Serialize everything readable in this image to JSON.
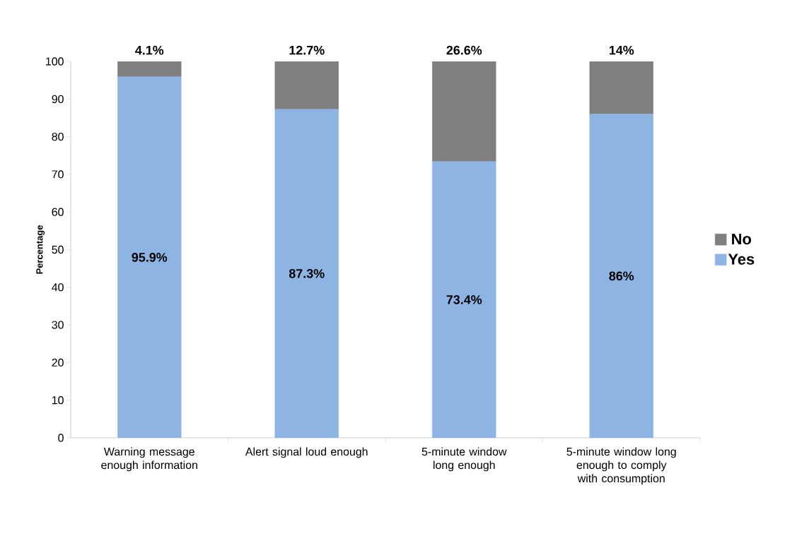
{
  "chart_data": {
    "type": "bar",
    "stacked": true,
    "ylabel": "Percentage",
    "categories": [
      "Warning message enough information",
      "Alert signal loud enough",
      "5-minute window long enough",
      "5-minute window long enough to comply with consumption"
    ],
    "series": [
      {
        "name": "Yes",
        "color": "#8eb4e3",
        "values": [
          95.9,
          87.3,
          73.4,
          86
        ],
        "value_labels": [
          "95.9%",
          "87.3%",
          "73.4%",
          "86%"
        ]
      },
      {
        "name": "No",
        "color": "#7f7f7f",
        "values": [
          4.1,
          12.7,
          26.6,
          14
        ],
        "value_labels": [
          "4.1%",
          "12.7%",
          "26.6%",
          "14%"
        ]
      }
    ],
    "ylim": [
      0,
      100
    ],
    "yticks": [
      0,
      10,
      20,
      30,
      40,
      50,
      60,
      70,
      80,
      90,
      100
    ],
    "grid": false,
    "legend": "right"
  }
}
